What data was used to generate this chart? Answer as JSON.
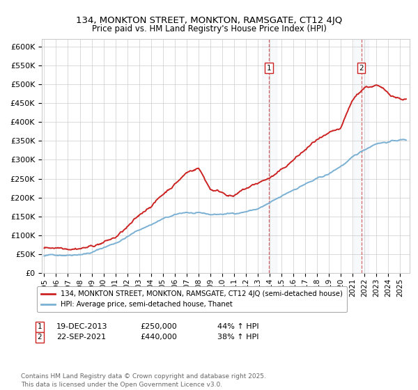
{
  "title": "134, MONKTON STREET, MONKTON, RAMSGATE, CT12 4JQ",
  "subtitle": "Price paid vs. HM Land Registry's House Price Index (HPI)",
  "ylim": [
    0,
    620000
  ],
  "yticks": [
    0,
    50000,
    100000,
    150000,
    200000,
    250000,
    300000,
    350000,
    400000,
    450000,
    500000,
    550000,
    600000
  ],
  "ytick_labels": [
    "£0",
    "£50K",
    "£100K",
    "£150K",
    "£200K",
    "£250K",
    "£300K",
    "£350K",
    "£400K",
    "£450K",
    "£500K",
    "£550K",
    "£600K"
  ],
  "hpi_color": "#7ab0d4",
  "price_color": "#cc2222",
  "annotation1_date": "19-DEC-2013",
  "annotation1_price": "£250,000",
  "annotation1_hpi": "44% ↑ HPI",
  "annotation2_date": "22-SEP-2021",
  "annotation2_price": "£440,000",
  "annotation2_hpi": "38% ↑ HPI",
  "legend_label1": "134, MONKTON STREET, MONKTON, RAMSGATE, CT12 4JQ (semi-detached house)",
  "legend_label2": "HPI: Average price, semi-detached house, Thanet",
  "footnote": "Contains HM Land Registry data © Crown copyright and database right 2025.\nThis data is licensed under the Open Government Licence v3.0.",
  "marker1_x": 2013.96,
  "marker2_x": 2021.72,
  "background_color": "#ffffff",
  "grid_color": "#cccccc",
  "xlim_left": 1994.8,
  "xlim_right": 2025.8
}
